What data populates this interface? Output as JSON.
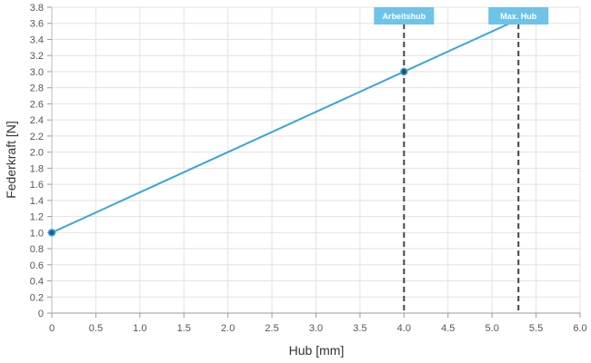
{
  "chart_data": {
    "type": "line",
    "xlabel": "Hub [mm]",
    "ylabel": "Federkraft [N]",
    "xlim": [
      0,
      6.0
    ],
    "ylim": [
      0,
      3.8
    ],
    "x_ticks": [
      "0",
      "0.5",
      "1.0",
      "1.5",
      "2.0",
      "2.5",
      "3.0",
      "3.5",
      "4.0",
      "4.5",
      "5.0",
      "5.5",
      "6.0"
    ],
    "y_ticks": [
      "0",
      "0.2",
      "0.4",
      "0.6",
      "0.8",
      "1.0",
      "1.2",
      "1.4",
      "1.6",
      "1.8",
      "2.0",
      "2.2",
      "2.4",
      "2.6",
      "2.8",
      "3.0",
      "3.2",
      "3.4",
      "3.6",
      "3.8"
    ],
    "grid": true,
    "legend": "none",
    "series": [
      {
        "x": [
          0,
          4.0,
          5.3
        ],
        "values": [
          1.0,
          3.0,
          3.65
        ],
        "color": "#3aa6d6"
      }
    ],
    "markers": [
      {
        "label": "Arbeitshub",
        "x": 4.0
      },
      {
        "label": "Max. Hub",
        "x": 5.3
      }
    ],
    "colors": {
      "line": "#3aa6d6",
      "point": "#1f5f8b",
      "marker_label_bg": "#6ec3e8",
      "marker_line": "#444444",
      "grid": "#e2e2e2"
    }
  }
}
